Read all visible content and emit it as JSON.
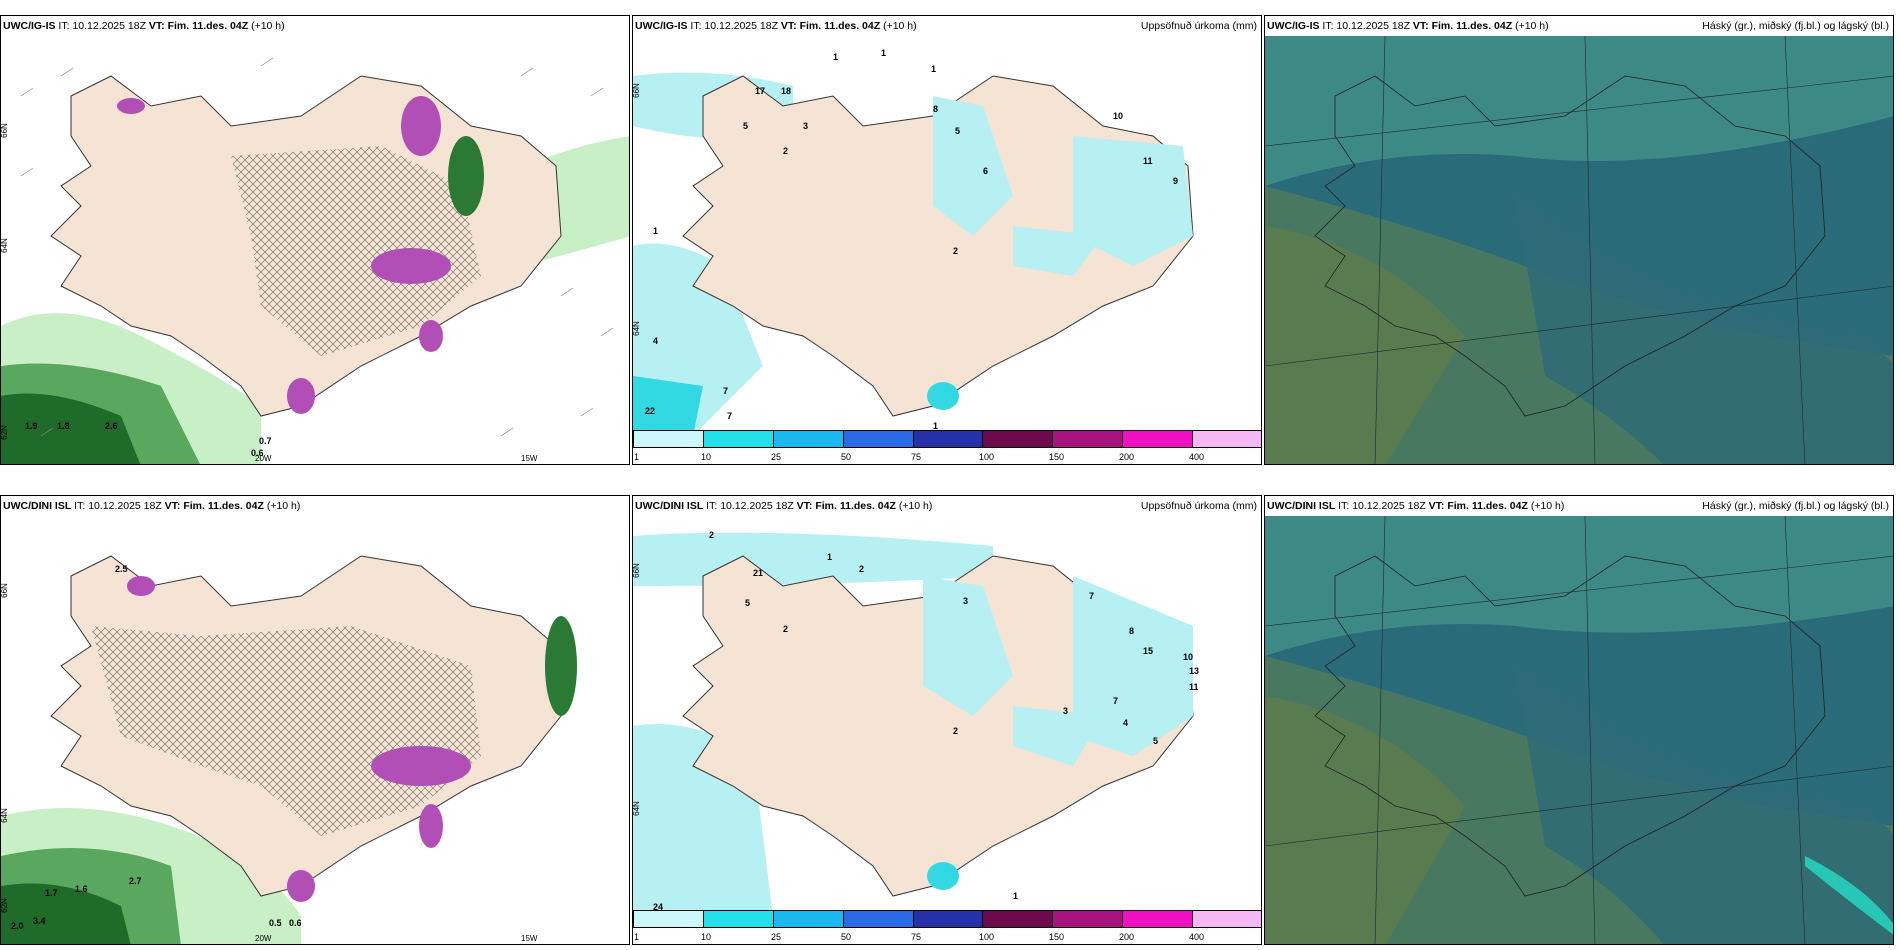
{
  "panels": [
    {
      "id": "p1",
      "model": "UWC/IG-IS",
      "it_label": "IT:",
      "it_value": "10.12.2025 18Z",
      "vt_label": "VT:",
      "vt_value": "Fim. 11.des. 04Z",
      "lead": "(+10 h)",
      "right_title": "",
      "kind": "precip_type",
      "lat_labels": [
        "66N",
        "64N",
        "62N"
      ],
      "lon_labels": [
        "20W",
        "15W"
      ],
      "value_labels": [
        "1.9",
        "1.8",
        "2.6",
        "0.7",
        "0.6"
      ]
    },
    {
      "id": "p2",
      "model": "UWC/IG-IS",
      "it_label": "IT:",
      "it_value": "10.12.2025 18Z",
      "vt_label": "VT:",
      "vt_value": "Fim. 11.des. 04Z",
      "lead": "(+10 h)",
      "right_title": "Uppsöfnuð úrkoma (mm)",
      "kind": "accum_precip",
      "lat_labels": [
        "66N",
        "64N"
      ],
      "value_labels": [
        "1",
        "1",
        "1",
        "17",
        "18",
        "5",
        "2",
        "3",
        "1",
        "22",
        "4",
        "7",
        "7",
        "8",
        "5",
        "6",
        "10",
        "11",
        "9",
        "2",
        "1"
      ],
      "colorbar_ticks": [
        "1",
        "10",
        "25",
        "50",
        "75",
        "100",
        "150",
        "200",
        "400"
      ]
    },
    {
      "id": "p3",
      "model": "UWC/IG-IS",
      "it_label": "IT:",
      "it_value": "10.12.2025 18Z",
      "vt_label": "VT:",
      "vt_value": "Fim. 11.des. 04Z",
      "lead": "(+10 h)",
      "right_title": "Háský (gr.), miðský (fj.bl.) og lágský (bl.)",
      "kind": "clouds"
    },
    {
      "id": "p4",
      "model": "UWC/DINI ISL",
      "it_label": "IT:",
      "it_value": "10.12.2025 18Z",
      "vt_label": "VT:",
      "vt_value": "Fim. 11.des. 04Z",
      "lead": "(+10 h)",
      "right_title": "",
      "kind": "precip_type",
      "lat_labels": [
        "66N",
        "64N",
        "62N"
      ],
      "lon_labels": [
        "20W",
        "15W"
      ],
      "value_labels": [
        "2.5",
        "1.7",
        "1.6",
        "2.7",
        "2.0",
        "3.4",
        "0.5",
        "0.6"
      ]
    },
    {
      "id": "p5",
      "model": "UWC/DINI ISL",
      "it_label": "IT:",
      "it_value": "10.12.2025 18Z",
      "vt_label": "VT:",
      "vt_value": "Fim. 11.des. 04Z",
      "lead": "(+10 h)",
      "right_title": "Uppsöfnuð úrkoma (mm)",
      "kind": "accum_precip",
      "lat_labels": [
        "66N",
        "64N"
      ],
      "value_labels": [
        "2",
        "21",
        "5",
        "2",
        "1",
        "2",
        "3",
        "7",
        "8",
        "15",
        "10",
        "13",
        "11",
        "7",
        "5",
        "4",
        "3",
        "2",
        "1",
        "24"
      ],
      "colorbar_ticks": [
        "1",
        "10",
        "25",
        "50",
        "75",
        "100",
        "150",
        "200",
        "400"
      ]
    },
    {
      "id": "p6",
      "model": "UWC/DINI ISL",
      "it_label": "IT:",
      "it_value": "10.12.2025 18Z",
      "vt_label": "VT:",
      "vt_value": "Fim. 11.des. 04Z",
      "lead": "(+10 h)",
      "right_title": "Háský (gr.), miðský (fj.bl.) og lágský (bl.)",
      "kind": "clouds"
    }
  ],
  "colors": {
    "land": "#f5e4d3",
    "precip_light": "#b6f0f3",
    "precip_mid": "#32d9e3",
    "green_light": "#c9efc6",
    "green_dark": "#1f6b2a",
    "magenta": "#b24fb6",
    "cloud_bg": "#2f6f7f",
    "colorbar": [
      "#ccf7fa",
      "#22e0ea",
      "#1bb8f0",
      "#2b69e8",
      "#2431a8",
      "#6d0a4b",
      "#a8127f",
      "#f20fc2",
      "#f5b7f5"
    ]
  }
}
